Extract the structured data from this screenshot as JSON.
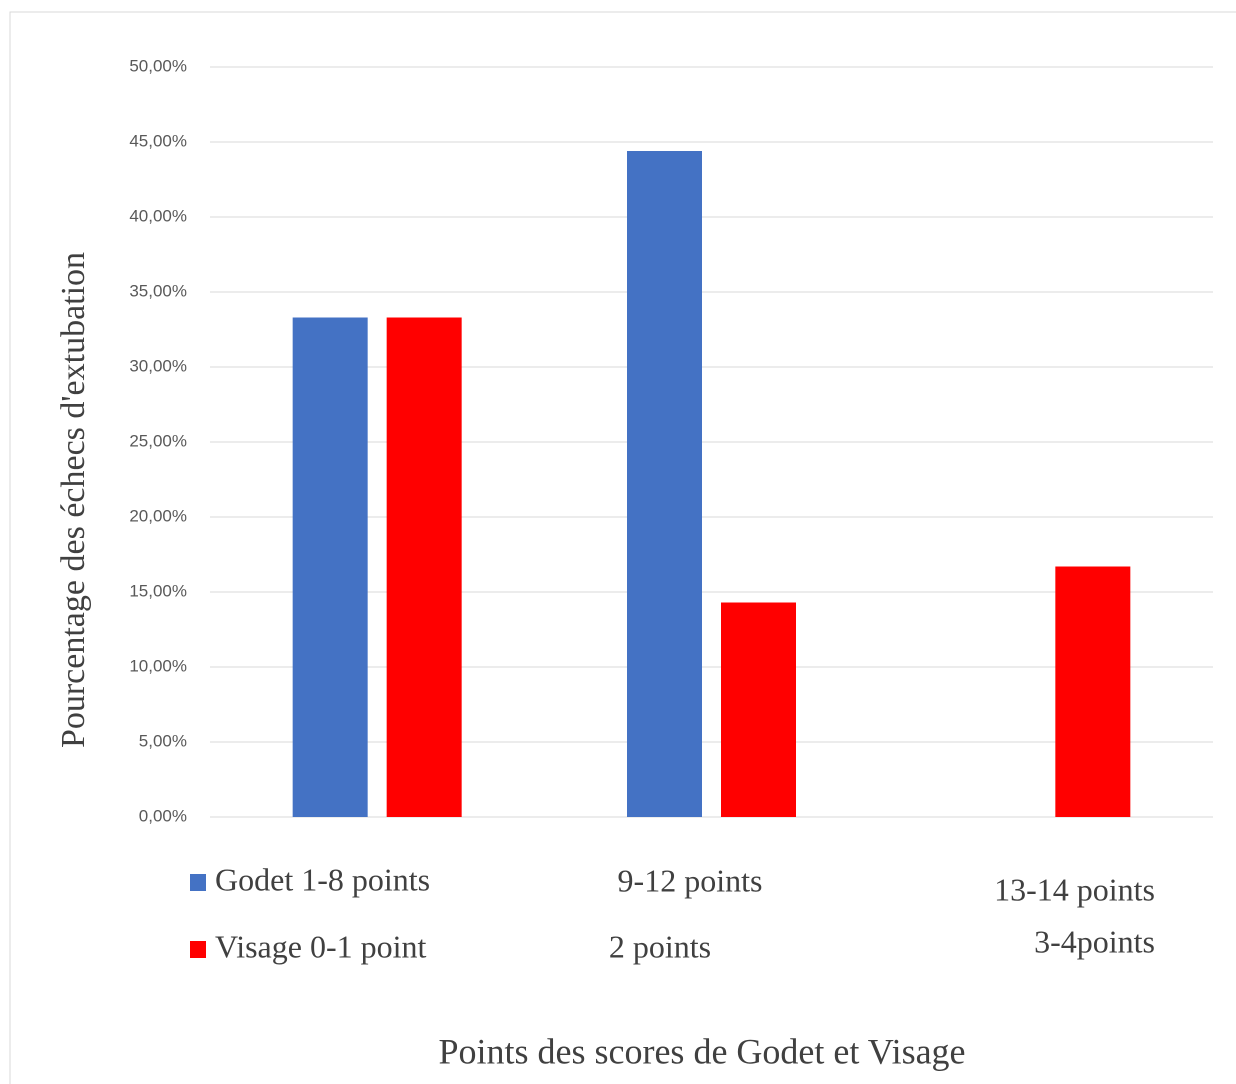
{
  "chart_data": {
    "type": "bar",
    "y_label": "Pourcentage des échecs d'extubation",
    "x_label": "Points des scores de Godet et Visage",
    "categories": [
      null,
      [
        "9-12 points",
        "2 points"
      ],
      [
        "13-14 points",
        "3-4points"
      ]
    ],
    "series": [
      {
        "name": "Godet 1-8 points",
        "color": "#4472c4",
        "values": [
          33.3,
          44.4,
          0
        ]
      },
      {
        "name": "Visage 0-1 point",
        "color": "#ff0000",
        "values": [
          33.3,
          14.3,
          16.7
        ]
      }
    ],
    "ylim": [
      0,
      50
    ],
    "yticks": [
      {
        "value": 0,
        "label": "0,00%"
      },
      {
        "value": 5,
        "label": "5,00%"
      },
      {
        "value": 10,
        "label": "10,00%"
      },
      {
        "value": 15,
        "label": "15,00%"
      },
      {
        "value": 20,
        "label": "20,00%"
      },
      {
        "value": 25,
        "label": "25,00%"
      },
      {
        "value": 30,
        "label": "30,00%"
      },
      {
        "value": 35,
        "label": "35,00%"
      },
      {
        "value": 40,
        "label": "40,00%"
      },
      {
        "value": 45,
        "label": "45,00%"
      },
      {
        "value": 50,
        "label": "50,00%"
      }
    ],
    "grid": true
  }
}
